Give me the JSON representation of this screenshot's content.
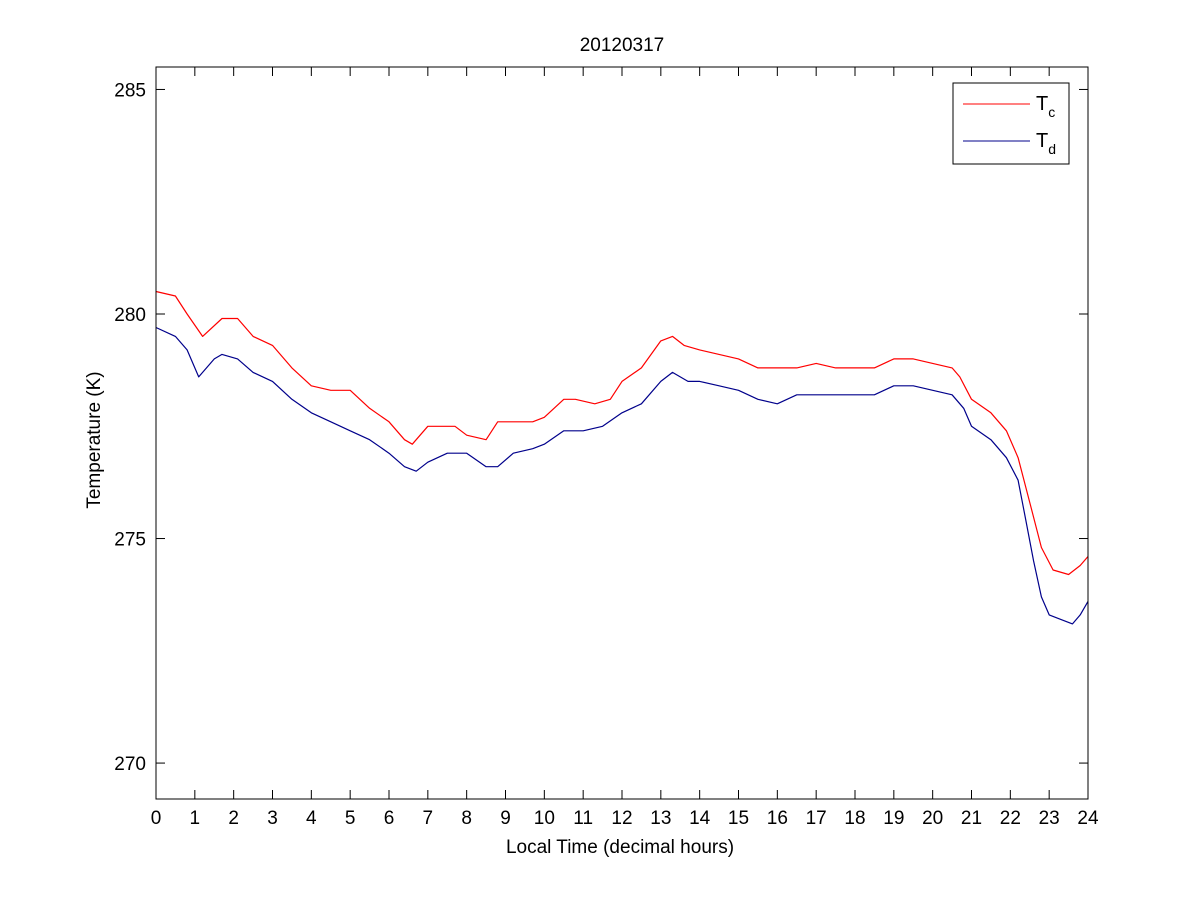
{
  "chart_data": {
    "type": "line",
    "title": "20120317",
    "xlabel": "Local Time (decimal hours)",
    "ylabel": "Temperature (K)",
    "xlim": [
      0,
      24
    ],
    "ylim": [
      269.2,
      285.5
    ],
    "xticks": [
      0,
      1,
      2,
      3,
      4,
      5,
      6,
      7,
      8,
      9,
      10,
      11,
      12,
      13,
      14,
      15,
      16,
      17,
      18,
      19,
      20,
      21,
      22,
      23,
      24
    ],
    "yticks": [
      270,
      275,
      280,
      285
    ],
    "grid": false,
    "legend_position": "top-right",
    "series": [
      {
        "name": "T",
        "subscript": "c",
        "color": "#ff0000",
        "x": [
          0,
          0.5,
          0.8,
          1.2,
          1.7,
          2.1,
          2.5,
          3.0,
          3.5,
          4.0,
          4.5,
          5.0,
          5.5,
          6.0,
          6.4,
          6.6,
          7.0,
          7.3,
          7.7,
          8.0,
          8.5,
          8.8,
          9.2,
          9.7,
          10.0,
          10.5,
          10.8,
          11.3,
          11.7,
          12.0,
          12.5,
          13.0,
          13.3,
          13.6,
          14.0,
          14.5,
          15.0,
          15.5,
          16.0,
          16.5,
          17.0,
          17.5,
          18.0,
          18.5,
          19.0,
          19.5,
          20.0,
          20.5,
          20.7,
          21.0,
          21.5,
          21.9,
          22.2,
          22.5,
          22.8,
          23.1,
          23.5,
          23.8,
          24.0
        ],
        "y": [
          280.5,
          280.4,
          280.0,
          279.5,
          279.9,
          279.9,
          279.5,
          279.3,
          278.8,
          278.4,
          278.3,
          278.3,
          277.9,
          277.6,
          277.2,
          277.1,
          277.5,
          277.5,
          277.5,
          277.3,
          277.2,
          277.6,
          277.6,
          277.6,
          277.7,
          278.1,
          278.1,
          278.0,
          278.1,
          278.5,
          278.8,
          279.4,
          279.5,
          279.3,
          279.2,
          279.1,
          279.0,
          278.8,
          278.8,
          278.8,
          278.9,
          278.8,
          278.8,
          278.8,
          279.0,
          279.0,
          278.9,
          278.8,
          278.6,
          278.1,
          277.8,
          277.4,
          276.8,
          275.8,
          274.8,
          274.3,
          274.2,
          274.4,
          274.6
        ]
      },
      {
        "name": "T",
        "subscript": "d",
        "color": "#00008b",
        "x": [
          0,
          0.5,
          0.8,
          1.1,
          1.5,
          1.7,
          2.1,
          2.5,
          3.0,
          3.5,
          4.0,
          4.5,
          5.0,
          5.5,
          6.0,
          6.4,
          6.7,
          7.0,
          7.5,
          8.0,
          8.5,
          8.8,
          9.2,
          9.7,
          10.0,
          10.5,
          11.0,
          11.5,
          12.0,
          12.5,
          13.0,
          13.3,
          13.7,
          14.0,
          14.5,
          15.0,
          15.5,
          16.0,
          16.5,
          17.0,
          17.5,
          18.0,
          18.5,
          19.0,
          19.5,
          20.0,
          20.5,
          20.8,
          21.0,
          21.5,
          21.9,
          22.2,
          22.4,
          22.6,
          22.8,
          23.0,
          23.3,
          23.6,
          23.8,
          24.0
        ],
        "y": [
          279.7,
          279.5,
          279.2,
          278.6,
          279.0,
          279.1,
          279.0,
          278.7,
          278.5,
          278.1,
          277.8,
          277.6,
          277.4,
          277.2,
          276.9,
          276.6,
          276.5,
          276.7,
          276.9,
          276.9,
          276.6,
          276.6,
          276.9,
          277.0,
          277.1,
          277.4,
          277.4,
          277.5,
          277.8,
          278.0,
          278.5,
          278.7,
          278.5,
          278.5,
          278.4,
          278.3,
          278.1,
          278.0,
          278.2,
          278.2,
          278.2,
          278.2,
          278.2,
          278.4,
          278.4,
          278.3,
          278.2,
          277.9,
          277.5,
          277.2,
          276.8,
          276.3,
          275.4,
          274.5,
          273.7,
          273.3,
          273.2,
          273.1,
          273.3,
          273.6
        ]
      }
    ]
  }
}
